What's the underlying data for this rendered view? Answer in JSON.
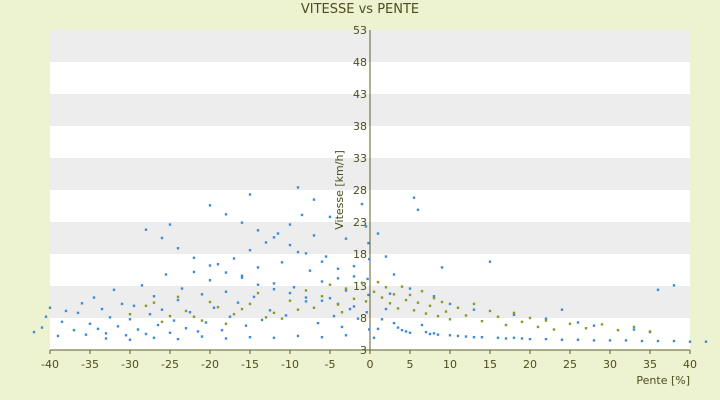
{
  "chart_data": {
    "type": "scatter",
    "title": "VITESSE vs PENTE",
    "xlabel": "Pente [%]",
    "ylabel": "Vitesse [km/h]",
    "xlim": [
      -40,
      40
    ],
    "ylim": [
      3,
      53
    ],
    "x_ticks": [
      -40,
      -35,
      -30,
      -25,
      -20,
      -15,
      -10,
      -5,
      0,
      5,
      10,
      15,
      20,
      25,
      30,
      35,
      40
    ],
    "y_ticks": [
      3,
      8,
      13,
      18,
      23,
      28,
      33,
      38,
      43,
      48,
      53
    ],
    "grid": "horizontal alternating bands",
    "legend": "none",
    "series": [
      {
        "color": "#3d8bd6",
        "points": [
          [
            -42,
            5.8
          ],
          [
            -41,
            6.5
          ],
          [
            -40.5,
            8.2
          ],
          [
            -40,
            9.6
          ],
          [
            -39,
            5.2
          ],
          [
            -38.5,
            7.4
          ],
          [
            -38,
            9.1
          ],
          [
            -37,
            6.1
          ],
          [
            -36.5,
            8.8
          ],
          [
            -36,
            10.3
          ],
          [
            -35.5,
            5.4
          ],
          [
            -35,
            7.1
          ],
          [
            -34.5,
            11.2
          ],
          [
            -34,
            6.3
          ],
          [
            -33.5,
            9.4
          ],
          [
            -33,
            5.6
          ],
          [
            -32.5,
            8.1
          ],
          [
            -32,
            12.4
          ],
          [
            -31.5,
            6.7
          ],
          [
            -31,
            10.2
          ],
          [
            -30.5,
            5.3
          ],
          [
            -30,
            7.8
          ],
          [
            -29.5,
            9.9
          ],
          [
            -29,
            6.2
          ],
          [
            -28.5,
            13.1
          ],
          [
            -28,
            5.5
          ],
          [
            -27.5,
            8.6
          ],
          [
            -27,
            11.4
          ],
          [
            -26.5,
            6.9
          ],
          [
            -26,
            9.3
          ],
          [
            -25.5,
            14.8
          ],
          [
            -25,
            5.7
          ],
          [
            -24.5,
            7.6
          ],
          [
            -24,
            10.8
          ],
          [
            -23.5,
            12.6
          ],
          [
            -23,
            6.4
          ],
          [
            -22.5,
            8.9
          ],
          [
            -22,
            15.2
          ],
          [
            -21.5,
            5.9
          ],
          [
            -21,
            11.7
          ],
          [
            -20.5,
            7.3
          ],
          [
            -20,
            13.9
          ],
          [
            -19.5,
            9.6
          ],
          [
            -19,
            16.4
          ],
          [
            -18.5,
            6.1
          ],
          [
            -18,
            12.1
          ],
          [
            -17.5,
            8.2
          ],
          [
            -17,
            17.3
          ],
          [
            -16.5,
            10.4
          ],
          [
            -16,
            14.6
          ],
          [
            -15.5,
            6.8
          ],
          [
            -15,
            18.6
          ],
          [
            -14.5,
            11.3
          ],
          [
            -14,
            15.9
          ],
          [
            -13.5,
            7.7
          ],
          [
            -13,
            19.8
          ],
          [
            -12.5,
            9.2
          ],
          [
            -12,
            13.4
          ],
          [
            -11.5,
            21.2
          ],
          [
            -11,
            16.7
          ],
          [
            -10.5,
            8.4
          ],
          [
            -10,
            22.6
          ],
          [
            -9.5,
            12.8
          ],
          [
            -9,
            18.3
          ],
          [
            -8.5,
            24.1
          ],
          [
            -8,
            10.6
          ],
          [
            -7.5,
            15.4
          ],
          [
            -7,
            20.9
          ],
          [
            -6.5,
            7.2
          ],
          [
            -6,
            13.7
          ],
          [
            -5.5,
            17.6
          ],
          [
            -5,
            11.1
          ],
          [
            -4.5,
            8.3
          ],
          [
            -4,
            14.2
          ],
          [
            -3.5,
            6.6
          ],
          [
            -3,
            12.3
          ],
          [
            -2.5,
            9.4
          ],
          [
            -2,
            16.1
          ],
          [
            -1.5,
            7.9
          ],
          [
            -1,
            13.5
          ],
          [
            -28,
            21.8
          ],
          [
            -26,
            20.5
          ],
          [
            -24,
            18.9
          ],
          [
            -22,
            17.4
          ],
          [
            -20,
            16.2
          ],
          [
            -18,
            15.1
          ],
          [
            -16,
            14.3
          ],
          [
            -14,
            13.2
          ],
          [
            -12,
            12.5
          ],
          [
            -10,
            11.9
          ],
          [
            -8,
            11.2
          ],
          [
            -6,
            10.7
          ],
          [
            -4,
            10.2
          ],
          [
            -2,
            9.8
          ],
          [
            -20,
            25.6
          ],
          [
            -18,
            24.2
          ],
          [
            -16,
            22.9
          ],
          [
            -14,
            21.7
          ],
          [
            -12,
            20.6
          ],
          [
            -10,
            19.4
          ],
          [
            -8,
            18.1
          ],
          [
            -6,
            16.8
          ],
          [
            -4,
            15.7
          ],
          [
            -2,
            14.5
          ],
          [
            -25,
            22.6
          ],
          [
            -15,
            27.3
          ],
          [
            -9,
            28.4
          ],
          [
            -7,
            26.5
          ],
          [
            -5,
            23.8
          ],
          [
            -3,
            20.4
          ],
          [
            -33,
            4.8
          ],
          [
            -30,
            4.6
          ],
          [
            -27,
            4.9
          ],
          [
            -24,
            4.7
          ],
          [
            -21,
            5.1
          ],
          [
            -18,
            4.8
          ],
          [
            -15,
            5.0
          ],
          [
            -12,
            4.9
          ],
          [
            -9,
            5.2
          ],
          [
            -6,
            5.0
          ],
          [
            -3,
            5.3
          ],
          [
            -1,
            25.8
          ],
          [
            -0.5,
            22.3
          ],
          [
            -0.2,
            19.7
          ],
          [
            -0.1,
            17.2
          ],
          [
            -0.3,
            14.1
          ],
          [
            -0.2,
            11.6
          ],
          [
            -0.4,
            8.9
          ],
          [
            -0.1,
            6.2
          ],
          [
            0.5,
            4.9
          ],
          [
            1,
            6.3
          ],
          [
            1.5,
            7.8
          ],
          [
            2,
            9.4
          ],
          [
            2.5,
            11.8
          ],
          [
            3,
            7.2
          ],
          [
            3.5,
            6.5
          ],
          [
            4,
            6.1
          ],
          [
            4.5,
            5.9
          ],
          [
            5,
            5.7
          ],
          [
            5.5,
            26.8
          ],
          [
            6,
            24.9
          ],
          [
            6.5,
            6.9
          ],
          [
            7,
            5.8
          ],
          [
            7.5,
            5.5
          ],
          [
            8,
            5.6
          ],
          [
            8.5,
            5.4
          ],
          [
            9,
            15.9
          ],
          [
            10,
            5.3
          ],
          [
            11,
            5.2
          ],
          [
            12,
            5.1
          ],
          [
            13,
            5.0
          ],
          [
            14,
            5.0
          ],
          [
            15,
            16.8
          ],
          [
            16,
            4.9
          ],
          [
            17,
            4.8
          ],
          [
            18,
            4.9
          ],
          [
            19,
            4.8
          ],
          [
            20,
            4.7
          ],
          [
            22,
            4.7
          ],
          [
            24,
            4.6
          ],
          [
            26,
            4.6
          ],
          [
            28,
            4.5
          ],
          [
            30,
            4.5
          ],
          [
            32,
            4.5
          ],
          [
            34,
            4.4
          ],
          [
            36,
            4.4
          ],
          [
            38,
            4.4
          ],
          [
            40,
            4.3
          ],
          [
            42,
            4.3
          ],
          [
            1,
            21.2
          ],
          [
            2,
            17.6
          ],
          [
            3,
            14.8
          ],
          [
            5,
            12.6
          ],
          [
            8,
            11.4
          ],
          [
            10,
            10.2
          ],
          [
            13,
            9.3
          ],
          [
            18,
            8.5
          ],
          [
            22,
            7.9
          ],
          [
            26,
            7.3
          ],
          [
            36,
            12.4
          ],
          [
            38,
            13.1
          ],
          [
            24,
            9.3
          ],
          [
            28,
            6.8
          ],
          [
            33,
            6.2
          ],
          [
            35,
            5.8
          ]
        ]
      },
      {
        "color": "#8a9a1e",
        "points": [
          [
            -30,
            8.6
          ],
          [
            -28,
            9.9
          ],
          [
            -26,
            7.4
          ],
          [
            -24,
            11.3
          ],
          [
            -22,
            8.2
          ],
          [
            -20,
            10.5
          ],
          [
            -18,
            7.1
          ],
          [
            -16,
            9.4
          ],
          [
            -14,
            11.9
          ],
          [
            -12,
            8.8
          ],
          [
            -10,
            10.7
          ],
          [
            -8,
            12.3
          ],
          [
            -7,
            9.6
          ],
          [
            -6,
            11.4
          ],
          [
            -5,
            13.2
          ],
          [
            -4,
            10.1
          ],
          [
            -3,
            12.6
          ],
          [
            -2,
            11.0
          ],
          [
            -1,
            13.4
          ],
          [
            -0.5,
            10.6
          ],
          [
            0.5,
            12.1
          ],
          [
            1,
            13.6
          ],
          [
            1.5,
            11.2
          ],
          [
            2,
            12.8
          ],
          [
            2.5,
            10.3
          ],
          [
            3,
            11.7
          ],
          [
            3.5,
            9.5
          ],
          [
            4,
            12.9
          ],
          [
            4.5,
            10.8
          ],
          [
            5,
            11.6
          ],
          [
            5.5,
            9.2
          ],
          [
            6,
            10.4
          ],
          [
            6.5,
            12.2
          ],
          [
            7,
            8.7
          ],
          [
            7.5,
            9.9
          ],
          [
            8,
            11.1
          ],
          [
            8.5,
            8.3
          ],
          [
            9,
            10.5
          ],
          [
            9.5,
            9.0
          ],
          [
            10,
            7.8
          ],
          [
            11,
            9.6
          ],
          [
            12,
            8.4
          ],
          [
            13,
            10.2
          ],
          [
            14,
            7.5
          ],
          [
            15,
            9.1
          ],
          [
            16,
            8.2
          ],
          [
            17,
            6.9
          ],
          [
            18,
            8.8
          ],
          [
            19,
            7.4
          ],
          [
            20,
            8.0
          ],
          [
            21,
            6.6
          ],
          [
            22,
            7.6
          ],
          [
            23,
            6.2
          ],
          [
            25,
            7.1
          ],
          [
            27,
            6.4
          ],
          [
            29,
            7.0
          ],
          [
            31,
            6.1
          ],
          [
            33,
            6.6
          ],
          [
            35,
            5.9
          ],
          [
            -11,
            7.9
          ],
          [
            -9,
            9.3
          ],
          [
            -13,
            8.1
          ],
          [
            -15,
            10.2
          ],
          [
            -17,
            8.6
          ],
          [
            -19,
            9.7
          ],
          [
            -21,
            7.6
          ],
          [
            -23,
            9.1
          ],
          [
            -25,
            8.3
          ],
          [
            -27,
            10.4
          ],
          [
            -3.5,
            8.9
          ]
        ]
      }
    ]
  }
}
